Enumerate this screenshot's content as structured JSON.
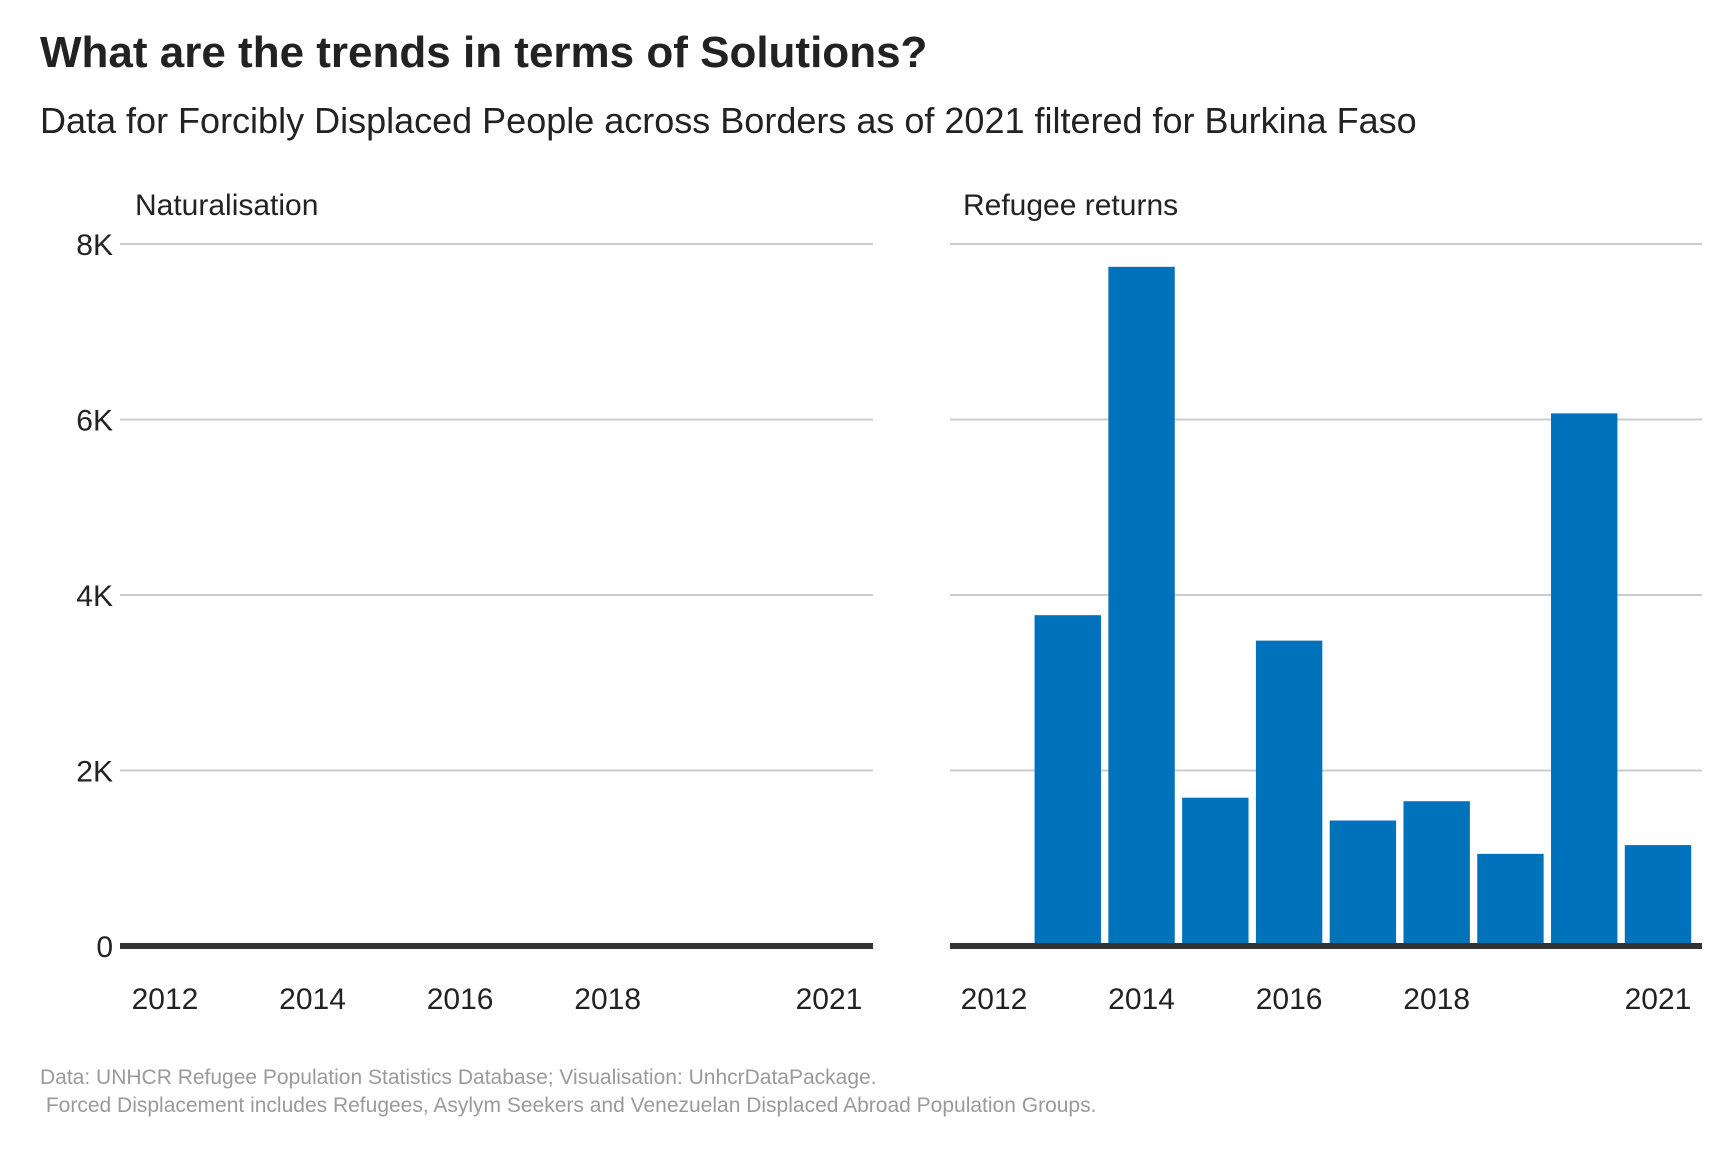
{
  "title": "What are the trends in terms of Solutions?",
  "subtitle": "Data for Forcibly Displaced People across Borders as of 2021 filtered for Burkina Faso",
  "caption_line1": "Data: UNHCR Refugee Population Statistics Database; Visualisation: UnhcrDataPackage.",
  "caption_line2": " Forced Displacement includes Refugees, Asylym Seekers and Venezuelan Displaced Abroad Population Groups.",
  "colors": {
    "bar": "#0072bc",
    "grid": "#cccccc",
    "baseline": "#333333",
    "text": "#222222",
    "caption": "#9a9a9a"
  },
  "chart_data": {
    "type": "bar",
    "ylim": [
      0,
      8000
    ],
    "yticks": [
      0,
      2000,
      4000,
      6000,
      8000
    ],
    "ytick_labels": [
      "0",
      "2K",
      "4K",
      "6K",
      "8K"
    ],
    "xlim": [
      2012,
      2021
    ],
    "xticks": [
      2012,
      2014,
      2016,
      2018,
      2021
    ],
    "xtick_labels": [
      "2012",
      "2014",
      "2016",
      "2018",
      "2021"
    ],
    "grid": true,
    "panels": [
      {
        "title": "Naturalisation",
        "x": [
          2012,
          2013,
          2014,
          2015,
          2016,
          2017,
          2018,
          2019,
          2020,
          2021
        ],
        "values": [
          0,
          0,
          0,
          0,
          0,
          0,
          0,
          0,
          0,
          0
        ]
      },
      {
        "title": "Refugee returns",
        "x": [
          2012,
          2013,
          2014,
          2015,
          2016,
          2017,
          2018,
          2019,
          2020,
          2021
        ],
        "values": [
          0,
          3770,
          7740,
          1690,
          3480,
          1430,
          1650,
          1050,
          6070,
          1150
        ]
      }
    ]
  }
}
